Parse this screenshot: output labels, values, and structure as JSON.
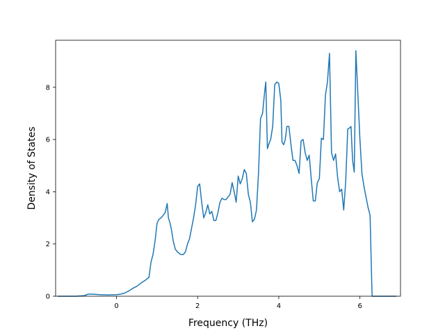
{
  "chart_data": {
    "type": "line",
    "title": "",
    "xlabel": "Frequency (THz)",
    "ylabel": "Density of States",
    "xlim": [
      -1.5,
      7.0
    ],
    "ylim": [
      0,
      9.8
    ],
    "xticks": [
      0,
      2,
      4,
      6
    ],
    "yticks": [
      0,
      2,
      4,
      6,
      8
    ],
    "xtick_labels": [
      "0",
      "2",
      "4",
      "6"
    ],
    "ytick_labels": [
      "0",
      "2",
      "4",
      "6",
      "8"
    ],
    "grid": false,
    "line_color": "#1f77b4",
    "series": [
      {
        "x": [
          -1.45,
          -1.2,
          -1.0,
          -0.8,
          -0.7,
          -0.6,
          -0.4,
          -0.2,
          0.0,
          0.1,
          0.2,
          0.3,
          0.4,
          0.5,
          0.6,
          0.7,
          0.8,
          0.85,
          0.9,
          0.95,
          1.0,
          1.05,
          1.1,
          1.15,
          1.2,
          1.25,
          1.28,
          1.32,
          1.36,
          1.4,
          1.45,
          1.5,
          1.58,
          1.65,
          1.7,
          1.75,
          1.8,
          1.85,
          1.9,
          1.95,
          2.0,
          2.05,
          2.1,
          2.15,
          2.2,
          2.25,
          2.3,
          2.35,
          2.4,
          2.45,
          2.5,
          2.55,
          2.6,
          2.65,
          2.7,
          2.75,
          2.8,
          2.85,
          2.9,
          2.95,
          3.0,
          3.05,
          3.1,
          3.15,
          3.2,
          3.25,
          3.3,
          3.35,
          3.4,
          3.45,
          3.5,
          3.55,
          3.6,
          3.65,
          3.68,
          3.72,
          3.76,
          3.8,
          3.85,
          3.9,
          3.95,
          4.0,
          4.05,
          4.08,
          4.12,
          4.16,
          4.2,
          4.25,
          4.3,
          4.35,
          4.4,
          4.45,
          4.5,
          4.55,
          4.6,
          4.65,
          4.7,
          4.75,
          4.8,
          4.85,
          4.9,
          4.95,
          5.0,
          5.05,
          5.1,
          5.15,
          5.2,
          5.25,
          5.3,
          5.35,
          5.4,
          5.45,
          5.5,
          5.55,
          5.6,
          5.65,
          5.7,
          5.75,
          5.78,
          5.82,
          5.86,
          5.9,
          5.95,
          6.0,
          6.05,
          6.1,
          6.15,
          6.2,
          6.25,
          6.28,
          6.3,
          6.5,
          6.7,
          6.9
        ],
        "y": [
          0.0,
          0.0,
          0.0,
          0.02,
          0.08,
          0.08,
          0.06,
          0.05,
          0.06,
          0.08,
          0.12,
          0.2,
          0.3,
          0.38,
          0.5,
          0.6,
          0.72,
          1.3,
          1.6,
          2.1,
          2.8,
          2.95,
          3.0,
          3.1,
          3.2,
          3.55,
          3.0,
          2.8,
          2.5,
          2.1,
          1.8,
          1.7,
          1.6,
          1.6,
          1.7,
          2.0,
          2.2,
          2.6,
          3.0,
          3.5,
          4.2,
          4.3,
          3.6,
          3.0,
          3.2,
          3.5,
          3.15,
          3.25,
          2.9,
          2.9,
          3.2,
          3.6,
          3.75,
          3.7,
          3.7,
          3.8,
          3.9,
          4.35,
          4.0,
          3.6,
          4.6,
          4.3,
          4.5,
          4.85,
          4.7,
          3.9,
          3.6,
          2.85,
          2.95,
          3.3,
          4.7,
          6.8,
          7.0,
          7.8,
          8.2,
          5.65,
          5.85,
          6.0,
          6.5,
          8.1,
          8.2,
          8.15,
          7.5,
          5.9,
          5.8,
          6.0,
          6.5,
          6.5,
          5.8,
          5.2,
          5.2,
          5.0,
          4.7,
          5.95,
          6.0,
          5.5,
          5.2,
          5.4,
          4.5,
          3.65,
          3.65,
          4.35,
          4.5,
          6.05,
          6.0,
          7.7,
          8.2,
          9.3,
          5.5,
          5.2,
          5.45,
          4.55,
          4.0,
          4.1,
          3.3,
          4.4,
          6.4,
          6.45,
          6.5,
          5.2,
          4.75,
          9.4,
          7.7,
          6.0,
          4.7,
          4.2,
          3.8,
          3.4,
          3.1,
          1.2,
          0.0,
          0.0,
          0.0,
          0.0
        ]
      }
    ]
  }
}
